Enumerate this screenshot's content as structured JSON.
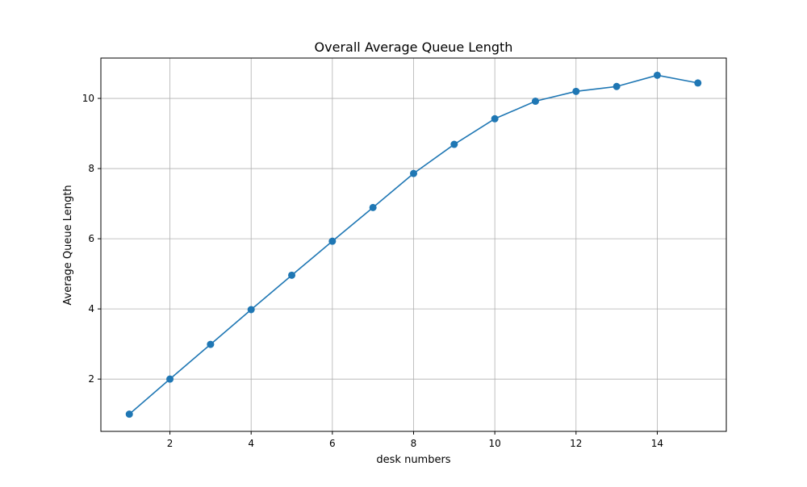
{
  "chart_data": {
    "type": "line",
    "title": "Overall Average Queue Length",
    "xlabel": "desk numbers",
    "ylabel": "Average Queue Length",
    "x": [
      1,
      2,
      3,
      4,
      5,
      6,
      7,
      8,
      9,
      10,
      11,
      12,
      13,
      14,
      15
    ],
    "series": [
      {
        "values": [
          1.0,
          2.0,
          2.99,
          3.98,
          4.96,
          5.93,
          6.89,
          7.86,
          8.69,
          9.42,
          9.92,
          10.2,
          10.34,
          10.66,
          10.44
        ]
      }
    ],
    "xlim": [
      0.3,
      15.7
    ],
    "ylim": [
      0.51,
      11.15
    ],
    "xticks": [
      2,
      4,
      6,
      8,
      10,
      12,
      14
    ],
    "yticks": [
      2,
      4,
      6,
      8,
      10
    ],
    "grid": true,
    "line_color": "#1f77b4",
    "marker": "circle",
    "marker_color": "#1f77b4"
  }
}
